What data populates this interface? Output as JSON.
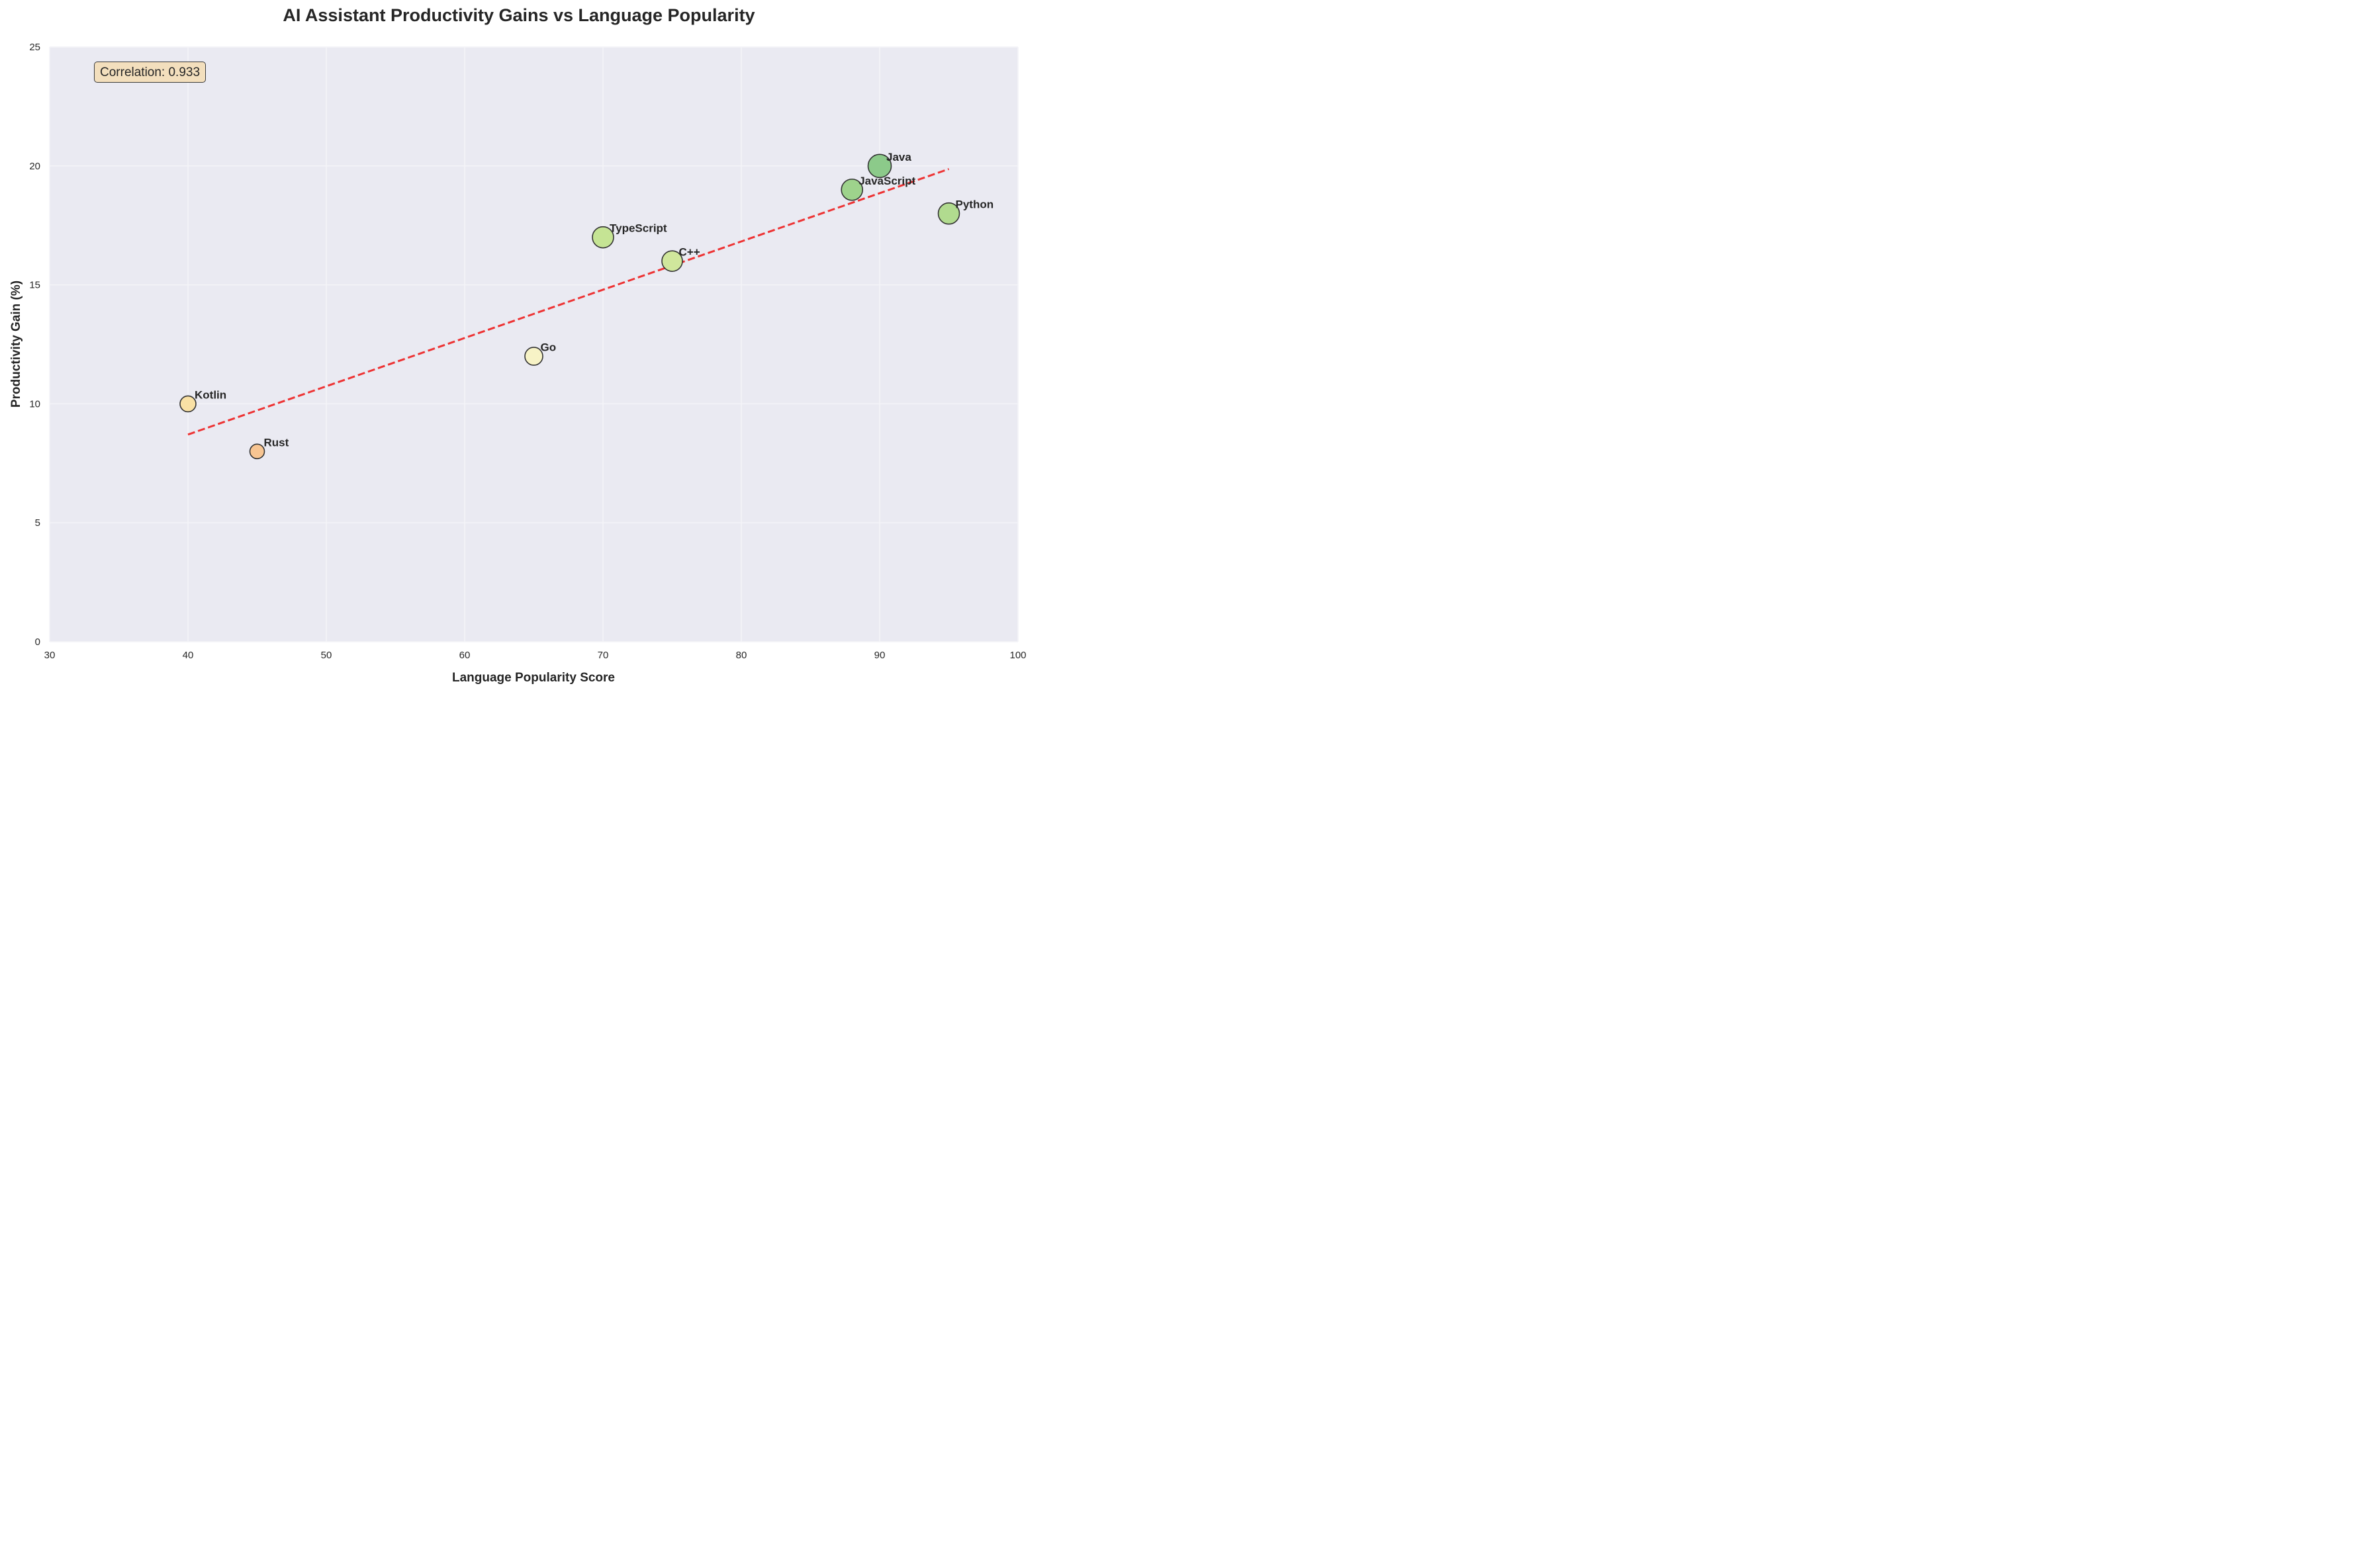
{
  "chart_data": {
    "type": "scatter",
    "title": "AI Assistant Productivity Gains vs Language Popularity",
    "xlabel": "Language Popularity Score",
    "ylabel": "Productivity Gain (%)",
    "xlim": [
      30,
      100
    ],
    "ylim": [
      0,
      25
    ],
    "xticks": [
      30,
      40,
      50,
      60,
      70,
      80,
      90,
      100
    ],
    "yticks": [
      0,
      5,
      10,
      15,
      20,
      25
    ],
    "grid": true,
    "background": "#eaeaf2",
    "points": [
      {
        "label": "Python",
        "x": 95,
        "y": 18,
        "size": 16,
        "color": "#b1db8f"
      },
      {
        "label": "JavaScript",
        "x": 88,
        "y": 19,
        "size": 16,
        "color": "#9ed38c"
      },
      {
        "label": "Java",
        "x": 90,
        "y": 20,
        "size": 17.5,
        "color": "#8cca8a"
      },
      {
        "label": "TypeScript",
        "x": 70,
        "y": 17,
        "size": 16,
        "color": "#c5e494"
      },
      {
        "label": "C++",
        "x": 75,
        "y": 16,
        "size": 15.5,
        "color": "#d0e79c"
      },
      {
        "label": "Go",
        "x": 65,
        "y": 12,
        "size": 13.5,
        "color": "#f7f3c6"
      },
      {
        "label": "Rust",
        "x": 45,
        "y": 8,
        "size": 11,
        "color": "#f7c592"
      },
      {
        "label": "Kotlin",
        "x": 40,
        "y": 10,
        "size": 12,
        "color": "#f9e1a5"
      }
    ],
    "trendline": {
      "type": "linear",
      "style": "dashed",
      "color": "#ee2a2a",
      "x": [
        40,
        95
      ],
      "y": [
        8.71,
        19.87
      ],
      "slope": 0.203,
      "intercept": 0.586
    },
    "annotations": [
      {
        "text": "Correlation: 0.933",
        "position": "top-left"
      }
    ]
  },
  "annotation": {
    "correlation_text": "Correlation: 0.933"
  }
}
